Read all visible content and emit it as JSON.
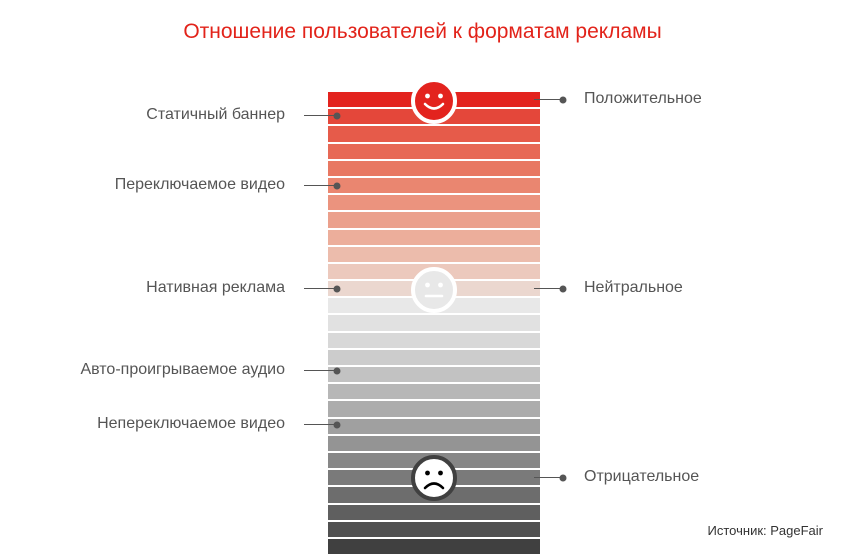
{
  "title": "Отношение пользователей к форматам рекламы",
  "scale_colors": [
    "#e3231e",
    "#e4473a",
    "#e65b4a",
    "#e76956",
    "#e87862",
    "#ea8670",
    "#eb937e",
    "#eba08c",
    "#ecae9b",
    "#ecbcac",
    "#ecc9bd",
    "#ebd7cf",
    "#e8e8e8",
    "#e1e1e1",
    "#d8d8d8",
    "#cccccc",
    "#c2c2c2",
    "#b7b7b7",
    "#acacac",
    "#a0a0a0",
    "#949494",
    "#878787",
    "#7a7a7a",
    "#6d6d6d",
    "#5f5f5f",
    "#505050",
    "#404040"
  ],
  "left_labels": [
    {
      "text": "Статичный баннер",
      "stripe": 1
    },
    {
      "text": "Переключаемое видео",
      "stripe": 5
    },
    {
      "text": "Нативная реклама",
      "stripe": 11
    },
    {
      "text": "Авто-проигрываемое аудио",
      "stripe": 16
    },
    {
      "text": "Непереключаемое видео",
      "stripe": 19
    }
  ],
  "right_labels": [
    {
      "text": "Положительное",
      "stripe": 0
    },
    {
      "text": "Нейтральное",
      "stripe": 11
    },
    {
      "text": "Отрицательное",
      "stripe": 22
    }
  ],
  "faces": [
    {
      "name": "happy-face-icon",
      "mood": "happy",
      "stripe": 0,
      "fill": "#e3231e"
    },
    {
      "name": "neutral-face-icon",
      "mood": "neutral",
      "stripe": 11,
      "fill": "#e8e8e8"
    },
    {
      "name": "sad-face-icon",
      "mood": "sad",
      "stripe": 22,
      "fill": "#404040"
    }
  ],
  "source": "Источник: PageFair"
}
